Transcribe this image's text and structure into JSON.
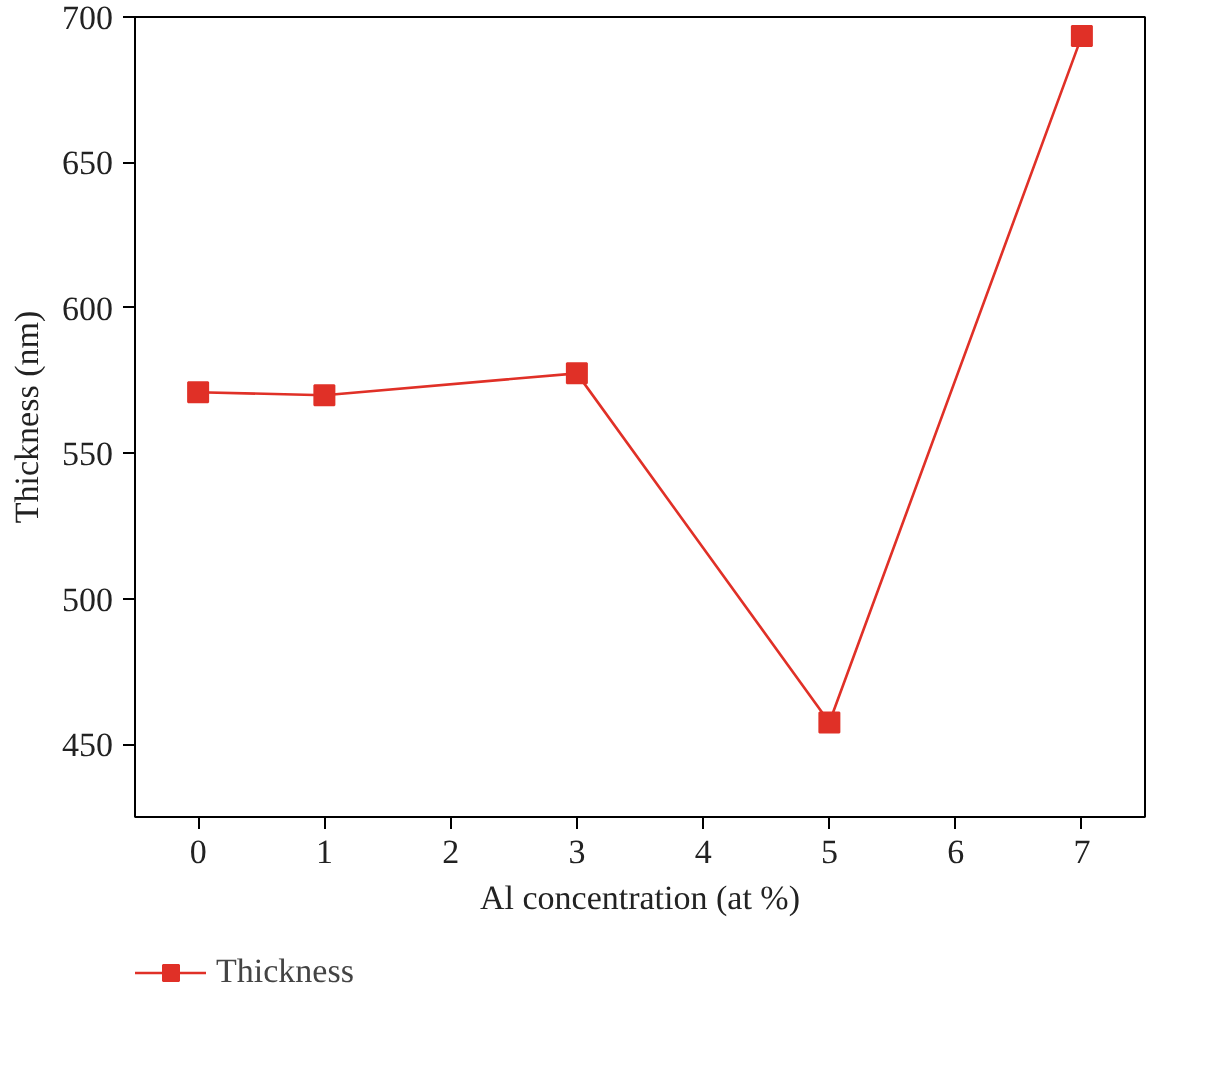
{
  "chart_data": {
    "type": "line",
    "xlabel": "Al concentration (at %)",
    "ylabel": "Thickness (nm)",
    "x": [
      0,
      1,
      3,
      5,
      7
    ],
    "series": [
      {
        "name": "Thickness",
        "color": "#e03027",
        "values": [
          571,
          570,
          577.5,
          457.5,
          693.5
        ]
      }
    ],
    "xlim": [
      -0.5,
      7.5
    ],
    "ylim": [
      425,
      700
    ],
    "xticks": [
      0,
      1,
      2,
      3,
      4,
      5,
      6,
      7
    ],
    "yticks": [
      450,
      500,
      550,
      600,
      650,
      700
    ],
    "marker": "square",
    "line_style": "solid",
    "grid": false,
    "legend": "bottom left"
  }
}
